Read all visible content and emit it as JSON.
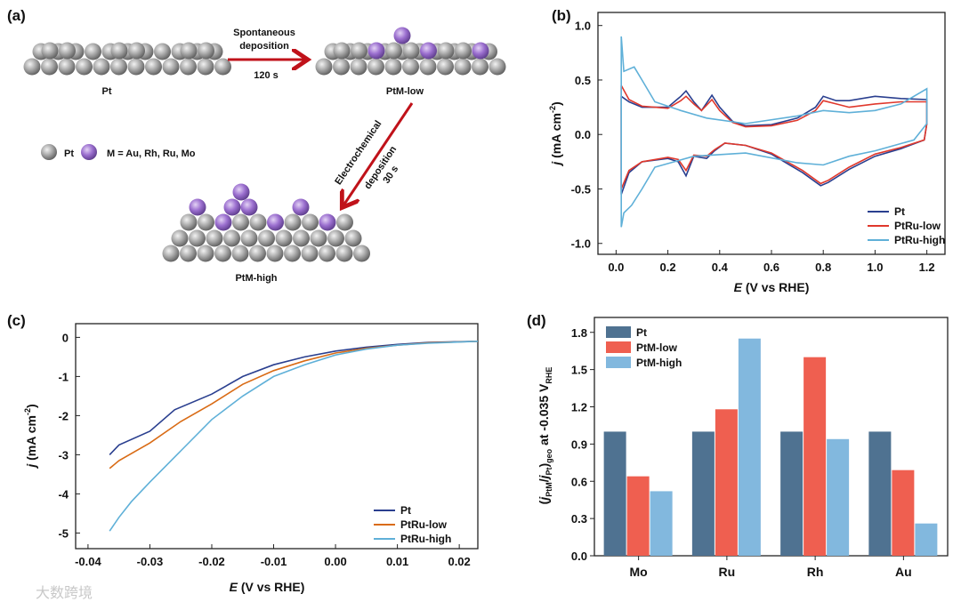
{
  "panel_a": {
    "label": "(a)",
    "step1_line1": "Spontaneous",
    "step1_line2": "deposition",
    "step1_time": "120 s",
    "step2_line1": "Electrochemical",
    "step2_line2": "deposition",
    "step2_time": "30 s",
    "name_pt": "Pt",
    "name_low": "PtM-low",
    "name_high": "PtM-high",
    "legend_pt": "Pt",
    "legend_m": "M = Au, Rh, Ru, Mo",
    "colors": {
      "pt": "#9a9a9a",
      "m": "#9b6fcf",
      "arrow": "#c0121a"
    }
  },
  "watermark": "大数跨境",
  "chart_data": [
    {
      "panel": "(b)",
      "type": "line",
      "xlabel_italic": "E",
      "xlabel_rest": " (V vs RHE)",
      "ylabel_italic": "j",
      "ylabel_rest": " (mA cm",
      "ylabel_sup": "-2",
      "ylabel_close": ")",
      "xlim": [
        -0.07,
        1.27
      ],
      "ylim": [
        -1.1,
        1.12
      ],
      "xticks": [
        "0.0",
        "0.2",
        "0.4",
        "0.6",
        "0.8",
        "1.0",
        "1.2"
      ],
      "xtick_values": [
        0,
        0.2,
        0.4,
        0.6,
        0.8,
        1.0,
        1.2
      ],
      "yticks": [
        "-1.0",
        "-0.5",
        "0.0",
        "0.5",
        "1.0"
      ],
      "ytick_values": [
        -1,
        -0.5,
        0,
        0.5,
        1
      ],
      "legend_position": "bottom-right",
      "series": [
        {
          "name": "Pt",
          "color": "#2a3f8f",
          "points": [
            [
              0.02,
              0.35
            ],
            [
              0.05,
              0.3
            ],
            [
              0.1,
              0.25
            ],
            [
              0.2,
              0.25
            ],
            [
              0.25,
              0.35
            ],
            [
              0.27,
              0.4
            ],
            [
              0.3,
              0.3
            ],
            [
              0.33,
              0.22
            ],
            [
              0.37,
              0.36
            ],
            [
              0.4,
              0.25
            ],
            [
              0.45,
              0.12
            ],
            [
              0.5,
              0.08
            ],
            [
              0.6,
              0.09
            ],
            [
              0.7,
              0.15
            ],
            [
              0.77,
              0.25
            ],
            [
              0.8,
              0.35
            ],
            [
              0.85,
              0.31
            ],
            [
              0.9,
              0.31
            ],
            [
              1.0,
              0.35
            ],
            [
              1.1,
              0.33
            ],
            [
              1.2,
              0.32
            ],
            [
              1.2,
              0.1
            ],
            [
              1.19,
              -0.05
            ],
            [
              1.1,
              -0.13
            ],
            [
              1.0,
              -0.2
            ],
            [
              0.9,
              -0.32
            ],
            [
              0.82,
              -0.44
            ],
            [
              0.79,
              -0.47
            ],
            [
              0.72,
              -0.35
            ],
            [
              0.6,
              -0.18
            ],
            [
              0.5,
              -0.1
            ],
            [
              0.42,
              -0.08
            ],
            [
              0.38,
              -0.15
            ],
            [
              0.35,
              -0.22
            ],
            [
              0.3,
              -0.2
            ],
            [
              0.27,
              -0.38
            ],
            [
              0.24,
              -0.25
            ],
            [
              0.2,
              -0.22
            ],
            [
              0.1,
              -0.25
            ],
            [
              0.05,
              -0.35
            ],
            [
              0.02,
              -0.55
            ],
            [
              0.02,
              0.35
            ]
          ]
        },
        {
          "name": "PtRu-low",
          "color": "#e0382c",
          "points": [
            [
              0.02,
              0.45
            ],
            [
              0.05,
              0.32
            ],
            [
              0.1,
              0.26
            ],
            [
              0.2,
              0.24
            ],
            [
              0.25,
              0.31
            ],
            [
              0.27,
              0.35
            ],
            [
              0.3,
              0.28
            ],
            [
              0.33,
              0.22
            ],
            [
              0.37,
              0.32
            ],
            [
              0.4,
              0.22
            ],
            [
              0.45,
              0.11
            ],
            [
              0.5,
              0.07
            ],
            [
              0.6,
              0.08
            ],
            [
              0.7,
              0.13
            ],
            [
              0.77,
              0.22
            ],
            [
              0.8,
              0.31
            ],
            [
              0.85,
              0.28
            ],
            [
              0.9,
              0.25
            ],
            [
              1.0,
              0.28
            ],
            [
              1.1,
              0.3
            ],
            [
              1.2,
              0.3
            ],
            [
              1.2,
              0.1
            ],
            [
              1.19,
              -0.05
            ],
            [
              1.1,
              -0.12
            ],
            [
              1.0,
              -0.18
            ],
            [
              0.9,
              -0.3
            ],
            [
              0.82,
              -0.42
            ],
            [
              0.79,
              -0.45
            ],
            [
              0.72,
              -0.33
            ],
            [
              0.6,
              -0.17
            ],
            [
              0.5,
              -0.1
            ],
            [
              0.42,
              -0.08
            ],
            [
              0.38,
              -0.14
            ],
            [
              0.35,
              -0.2
            ],
            [
              0.3,
              -0.19
            ],
            [
              0.27,
              -0.33
            ],
            [
              0.24,
              -0.23
            ],
            [
              0.2,
              -0.21
            ],
            [
              0.1,
              -0.25
            ],
            [
              0.05,
              -0.33
            ],
            [
              0.02,
              -0.5
            ],
            [
              0.02,
              0.45
            ]
          ]
        },
        {
          "name": "PtRu-high",
          "color": "#5fb0d8",
          "points": [
            [
              0.02,
              0.9
            ],
            [
              0.03,
              0.58
            ],
            [
              0.07,
              0.62
            ],
            [
              0.1,
              0.5
            ],
            [
              0.15,
              0.3
            ],
            [
              0.25,
              0.22
            ],
            [
              0.35,
              0.15
            ],
            [
              0.5,
              0.1
            ],
            [
              0.7,
              0.17
            ],
            [
              0.8,
              0.22
            ],
            [
              0.9,
              0.2
            ],
            [
              1.0,
              0.22
            ],
            [
              1.1,
              0.28
            ],
            [
              1.2,
              0.42
            ],
            [
              1.2,
              0.1
            ],
            [
              1.15,
              -0.05
            ],
            [
              1.0,
              -0.15
            ],
            [
              0.9,
              -0.2
            ],
            [
              0.8,
              -0.28
            ],
            [
              0.7,
              -0.26
            ],
            [
              0.5,
              -0.17
            ],
            [
              0.3,
              -0.2
            ],
            [
              0.15,
              -0.3
            ],
            [
              0.1,
              -0.5
            ],
            [
              0.06,
              -0.65
            ],
            [
              0.03,
              -0.72
            ],
            [
              0.02,
              -0.85
            ],
            [
              0.02,
              0.9
            ]
          ]
        }
      ]
    },
    {
      "panel": "(c)",
      "type": "line",
      "xlabel_italic": "E",
      "xlabel_rest": " (V vs RHE)",
      "ylabel_italic": "j",
      "ylabel_rest": " (mA cm",
      "ylabel_sup": "-2",
      "ylabel_close": ")",
      "xlim": [
        -0.042,
        0.023
      ],
      "ylim": [
        -5.4,
        0.35
      ],
      "xticks": [
        "-0.04",
        "-0.03",
        "-0.02",
        "-0.01",
        "0.00",
        "0.01",
        "0.02"
      ],
      "xtick_values": [
        -0.04,
        -0.03,
        -0.02,
        -0.01,
        0,
        0.01,
        0.02
      ],
      "yticks": [
        "-5",
        "-4",
        "-3",
        "-2",
        "-1",
        "0"
      ],
      "ytick_values": [
        -5,
        -4,
        -3,
        -2,
        -1,
        0
      ],
      "legend_position": "bottom-right",
      "series": [
        {
          "name": "Pt",
          "color": "#2a3f8f",
          "points": [
            [
              -0.0365,
              -3.0
            ],
            [
              -0.035,
              -2.75
            ],
            [
              -0.03,
              -2.4
            ],
            [
              -0.026,
              -1.85
            ],
            [
              -0.02,
              -1.45
            ],
            [
              -0.015,
              -1.0
            ],
            [
              -0.01,
              -0.7
            ],
            [
              -0.005,
              -0.5
            ],
            [
              0,
              -0.35
            ],
            [
              0.005,
              -0.25
            ],
            [
              0.01,
              -0.18
            ],
            [
              0.015,
              -0.13
            ],
            [
              0.023,
              -0.1
            ]
          ]
        },
        {
          "name": "PtRu-low",
          "color": "#d96b15",
          "points": [
            [
              -0.0365,
              -3.35
            ],
            [
              -0.035,
              -3.15
            ],
            [
              -0.03,
              -2.7
            ],
            [
              -0.025,
              -2.15
            ],
            [
              -0.02,
              -1.7
            ],
            [
              -0.015,
              -1.2
            ],
            [
              -0.01,
              -0.85
            ],
            [
              -0.005,
              -0.6
            ],
            [
              0,
              -0.4
            ],
            [
              0.005,
              -0.28
            ],
            [
              0.01,
              -0.2
            ],
            [
              0.015,
              -0.14
            ],
            [
              0.023,
              -0.1
            ]
          ]
        },
        {
          "name": "PtRu-high",
          "color": "#5fb0d8",
          "points": [
            [
              -0.0365,
              -4.95
            ],
            [
              -0.035,
              -4.6
            ],
            [
              -0.033,
              -4.2
            ],
            [
              -0.03,
              -3.7
            ],
            [
              -0.025,
              -2.9
            ],
            [
              -0.02,
              -2.1
            ],
            [
              -0.015,
              -1.5
            ],
            [
              -0.01,
              -1.0
            ],
            [
              -0.005,
              -0.7
            ],
            [
              0,
              -0.45
            ],
            [
              0.005,
              -0.3
            ],
            [
              0.01,
              -0.2
            ],
            [
              0.015,
              -0.15
            ],
            [
              0.023,
              -0.1
            ]
          ]
        }
      ]
    },
    {
      "panel": "(d)",
      "type": "bar",
      "categories": [
        "Mo",
        "Ru",
        "Rh",
        "Au"
      ],
      "ylim": [
        0,
        1.92
      ],
      "yticks": [
        "0.0",
        "0.3",
        "0.6",
        "0.9",
        "1.2",
        "1.5",
        "1.8"
      ],
      "ytick_values": [
        0,
        0.3,
        0.6,
        0.9,
        1.2,
        1.5,
        1.8
      ],
      "ylabel": "(jPtM/jPt)geo at -0.035 VRHE",
      "ylabel_parts": {
        "open": "(",
        "j1": "j",
        "sub1": "PtM",
        "slash": "/",
        "j2": "j",
        "sub2": "Pt",
        "close": ")",
        "sub3": "geo",
        "rest": " at -0.035 V",
        "sub4": "RHE"
      },
      "legend_position": "top-left",
      "series": [
        {
          "name": "Pt",
          "color": "#4f7291",
          "values": [
            1.0,
            1.0,
            1.0,
            1.0
          ]
        },
        {
          "name": "PtM-low",
          "color": "#ef5f50",
          "values": [
            0.64,
            1.18,
            1.6,
            0.69
          ]
        },
        {
          "name": "PtM-high",
          "color": "#82b8de",
          "values": [
            0.52,
            1.75,
            0.94,
            0.26
          ]
        }
      ]
    }
  ]
}
